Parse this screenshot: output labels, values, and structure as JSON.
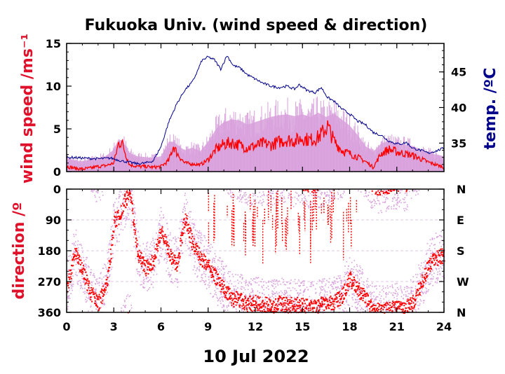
{
  "chart_data": [
    {
      "type": "line",
      "title": "Fukuoka Univ. (wind speed & direction)",
      "ylabel": "wind speed /ms⁻¹",
      "y2label": "temp. /ºC",
      "xlim": [
        0,
        24
      ],
      "ylim": [
        0,
        15
      ],
      "y2lim": [
        31,
        49
      ],
      "xticks": [
        "0",
        "3",
        "6",
        "9",
        "12",
        "15",
        "18",
        "21",
        "24"
      ],
      "yticks": [
        "0",
        "5",
        "10",
        "15"
      ],
      "y2ticks": [
        "35",
        "40",
        "45"
      ],
      "colors": {
        "mean": "#ff0000",
        "gust": "#d8a0dc",
        "temp": "#00008b"
      },
      "series": [
        {
          "key": "gust",
          "x": [
            0,
            0.5,
            1,
            1.5,
            2,
            2.5,
            3,
            3.3,
            3.6,
            4,
            4.5,
            5,
            5.5,
            6,
            6.5,
            6.8,
            7,
            7.5,
            8,
            8.5,
            9,
            9.5,
            10,
            10.5,
            11,
            11.5,
            12,
            12.5,
            13,
            13.5,
            14,
            14.5,
            15,
            15.5,
            16,
            16.5,
            17,
            17.5,
            18,
            18.5,
            19,
            19.5,
            20,
            20.5,
            21,
            21.5,
            22,
            22.5,
            23,
            23.5,
            24
          ],
          "values": [
            1.6,
            1.3,
            1.2,
            1.4,
            1.6,
            1.8,
            2.6,
            3.8,
            3.5,
            2.2,
            1.8,
            1.7,
            1.6,
            1.8,
            3.5,
            3.5,
            3.2,
            2.5,
            2.8,
            2.4,
            3.5,
            5.0,
            5.8,
            6.1,
            6.0,
            5.5,
            5.8,
            6.1,
            6.4,
            6.6,
            6.7,
            6.5,
            6.7,
            6.4,
            6.9,
            6.4,
            6.8,
            6.1,
            5.4,
            4.3,
            3.0,
            2.3,
            3.3,
            3.6,
            3.3,
            3.2,
            3.0,
            2.6,
            2.2,
            2.0,
            1.8
          ]
        },
        {
          "key": "mean",
          "x": [
            0,
            0.5,
            1,
            1.5,
            2,
            2.5,
            3,
            3.3,
            3.5,
            3.8,
            4,
            4.5,
            5,
            5.5,
            6,
            6.5,
            6.8,
            7,
            7.5,
            8,
            8.5,
            9,
            9.5,
            10,
            10.5,
            11,
            11.5,
            12,
            12.5,
            13,
            13.5,
            14,
            14.5,
            15,
            15.5,
            16,
            16.3,
            16.6,
            17,
            17.5,
            18,
            18.5,
            19,
            19.5,
            20,
            20.5,
            21,
            21.5,
            22,
            22.5,
            23,
            23.5,
            24
          ],
          "values": [
            0.6,
            0.4,
            0.3,
            0.4,
            0.6,
            0.7,
            1.0,
            3.3,
            3.5,
            1.8,
            0.8,
            0.6,
            0.6,
            0.5,
            0.6,
            1.3,
            3.0,
            2.2,
            1.0,
            0.9,
            0.8,
            1.4,
            2.6,
            3.2,
            3.4,
            3.1,
            2.8,
            3.0,
            3.3,
            3.1,
            3.5,
            3.7,
            3.6,
            3.9,
            3.7,
            4.0,
            4.6,
            5.3,
            3.6,
            2.5,
            2.1,
            1.7,
            1.2,
            0.5,
            2.1,
            2.6,
            2.3,
            2.1,
            1.9,
            1.5,
            1.1,
            0.8,
            0.5
          ]
        },
        {
          "key": "temp",
          "x": [
            0,
            0.3,
            1,
            2,
            2.8,
            3.5,
            4,
            4.5,
            5,
            5.5,
            6,
            6.5,
            7,
            7.5,
            8,
            8.3,
            8.6,
            9,
            9.4,
            9.8,
            10.2,
            10.6,
            11,
            11.5,
            12,
            12.5,
            13,
            13.5,
            14,
            14.5,
            14.8,
            15.3,
            15.8,
            16.2,
            16.6,
            17,
            17.5,
            18,
            18.5,
            19,
            19.5,
            20,
            20.5,
            21,
            21.3,
            21.6,
            22,
            22.5,
            23,
            23.5,
            24
          ],
          "values": [
            32.9,
            33.0,
            32.9,
            32.8,
            32.9,
            32.5,
            32.3,
            32.1,
            32.2,
            32.5,
            34.5,
            38.0,
            40.5,
            42.4,
            43.6,
            45.0,
            46.6,
            47.1,
            46.7,
            45.4,
            47.3,
            45.9,
            45.6,
            44.6,
            44.0,
            43.4,
            43.0,
            42.8,
            43.0,
            42.6,
            43.2,
            42.4,
            42.1,
            42.8,
            41.4,
            40.9,
            39.8,
            39.1,
            38.1,
            37.6,
            36.5,
            36.1,
            35.3,
            34.9,
            34.9,
            35.1,
            34.3,
            34.0,
            33.6,
            33.9,
            34.3
          ]
        }
      ]
    },
    {
      "type": "scatter",
      "xlabel": "10 Jul 2022",
      "ylabel": "direction /º",
      "xlim": [
        0,
        24
      ],
      "ylim": [
        360,
        0
      ],
      "xticks": [
        "0",
        "3",
        "6",
        "9",
        "12",
        "15",
        "18",
        "21",
        "24"
      ],
      "yticks": [
        "0",
        "90",
        "180",
        "270",
        "360"
      ],
      "y2ticks": [
        "N",
        "E",
        "S",
        "W",
        "N"
      ],
      "colors": {
        "mean": "#ff0000",
        "raw": "#d8a0dc"
      },
      "series": [
        {
          "key": "mean",
          "x": [
            0,
            0.3,
            0.5,
            1,
            1.5,
            2,
            2.5,
            2.8,
            3,
            3.3,
            3.6,
            4,
            4.5,
            5,
            5.5,
            6,
            6.5,
            7,
            7.5,
            8,
            8.5,
            9,
            9.5,
            10,
            10.5,
            11,
            11.5,
            12,
            12.5,
            13,
            13.5,
            14,
            14.5,
            15,
            15.5,
            16,
            16.5,
            17,
            17.5,
            18,
            18.5,
            19,
            19.5,
            20,
            20.5,
            21,
            21.5,
            22,
            22.5,
            23,
            23.5,
            24
          ],
          "values": [
            280,
            230,
            180,
            240,
            300,
            330,
            280,
            180,
            90,
            80,
            40,
            10,
            190,
            230,
            210,
            120,
            190,
            220,
            80,
            160,
            200,
            220,
            260,
            290,
            320,
            320,
            335,
            330,
            335,
            340,
            330,
            338,
            335,
            340,
            345,
            338,
            330,
            330,
            310,
            260,
            290,
            320,
            350,
            355,
            350,
            345,
            348,
            330,
            280,
            220,
            200,
            190
          ]
        }
      ]
    }
  ]
}
